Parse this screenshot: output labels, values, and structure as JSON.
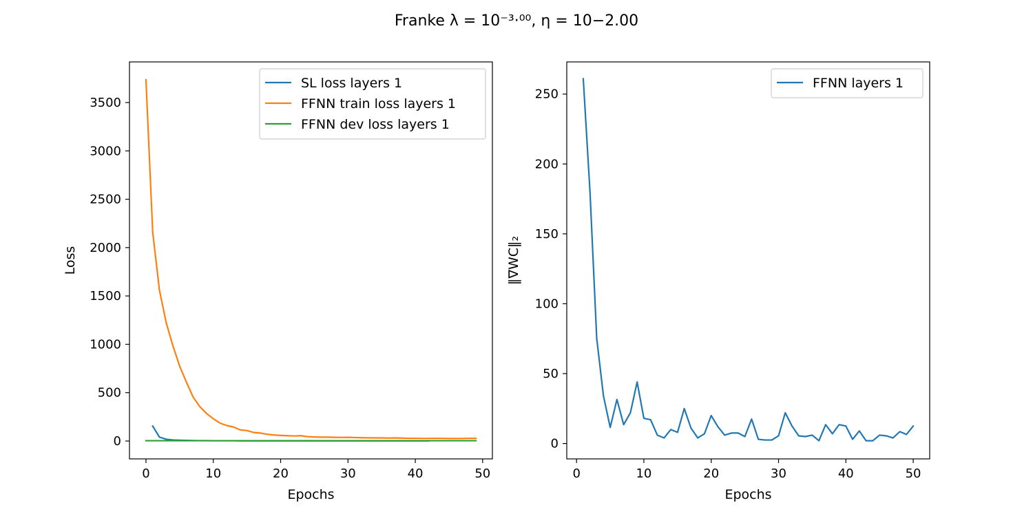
{
  "figure": {
    "title": "Franke λ = 10⁻³·⁰⁰, η = 10−2.00"
  },
  "chart_data": [
    {
      "type": "line",
      "xlabel": "Epochs",
      "ylabel": "Loss",
      "xlim": [
        -2.45,
        51.45
      ],
      "ylim": [
        -185,
        3920
      ],
      "xticks": [
        0,
        10,
        20,
        30,
        40,
        50
      ],
      "yticks": [
        0,
        500,
        1000,
        1500,
        2000,
        2500,
        3000,
        3500
      ],
      "legend": "top-right",
      "series": [
        {
          "name": "SL loss layers 1",
          "color": "#1f77b4",
          "x": [
            1,
            2,
            3,
            4,
            5,
            6,
            7,
            8,
            9,
            10,
            11,
            12,
            13,
            14,
            15,
            16,
            17,
            18,
            19,
            20,
            21,
            22,
            23,
            24,
            25,
            26,
            27,
            28,
            29,
            30,
            31,
            32,
            33,
            34,
            35,
            36,
            37,
            38,
            39,
            40,
            41,
            42
          ],
          "y": [
            155,
            40,
            18,
            11,
            8,
            6,
            5,
            4,
            4,
            3,
            3,
            3,
            3,
            2,
            2,
            2,
            2,
            2,
            2,
            2,
            2,
            2,
            2,
            2,
            2,
            2,
            2,
            2,
            2,
            2,
            2,
            2,
            2,
            2,
            2,
            2,
            2,
            2,
            2,
            2,
            2,
            2
          ]
        },
        {
          "name": "FFNN train loss layers 1",
          "color": "#ff7f0e",
          "x": [
            0,
            1,
            2,
            3,
            4,
            5,
            6,
            7,
            8,
            9,
            10,
            11,
            12,
            13,
            14,
            15,
            16,
            17,
            18,
            19,
            20,
            21,
            22,
            23,
            24,
            25,
            26,
            27,
            28,
            29,
            30,
            31,
            32,
            33,
            34,
            35,
            36,
            37,
            38,
            39,
            40,
            41,
            42,
            43,
            44,
            45,
            46,
            47,
            48,
            49
          ],
          "y": [
            3735,
            2160,
            1560,
            1225,
            985,
            775,
            610,
            455,
            355,
            285,
            230,
            185,
            160,
            145,
            115,
            108,
            88,
            82,
            70,
            62,
            58,
            55,
            52,
            55,
            45,
            42,
            40,
            40,
            38,
            37,
            38,
            36,
            34,
            33,
            32,
            32,
            30,
            32,
            30,
            28,
            28,
            27,
            27,
            28,
            27,
            26,
            26,
            26,
            28,
            27
          ]
        },
        {
          "name": "FFNN dev loss layers 1",
          "color": "#2ca02c",
          "x": [
            0,
            49
          ],
          "y": [
            3,
            3
          ]
        }
      ]
    },
    {
      "type": "line",
      "xlabel": "Epochs",
      "ylabel": "‖∇WC‖₂",
      "xlim": [
        -1.45,
        52.45
      ],
      "ylim": [
        -11,
        273
      ],
      "xticks": [
        0,
        10,
        20,
        30,
        40,
        50
      ],
      "yticks": [
        0,
        50,
        100,
        150,
        200,
        250
      ],
      "legend": "top-right",
      "series": [
        {
          "name": "FFNN layers 1",
          "color": "#1f77b4",
          "x": [
            1,
            2,
            3,
            4,
            5,
            6,
            7,
            8,
            9,
            10,
            11,
            12,
            13,
            14,
            15,
            16,
            17,
            18,
            19,
            20,
            21,
            22,
            23,
            24,
            25,
            26,
            27,
            28,
            29,
            30,
            31,
            32,
            33,
            34,
            35,
            36,
            37,
            38,
            39,
            40,
            41,
            42,
            43,
            44,
            45,
            46,
            47,
            48,
            49,
            50
          ],
          "y": [
            261,
            180,
            75,
            34,
            11.5,
            31.5,
            13.5,
            22,
            44,
            18,
            17,
            6,
            4,
            10,
            8,
            25,
            11,
            4,
            7,
            20,
            12,
            6,
            7.5,
            7.5,
            5,
            17.5,
            3,
            2.5,
            2.5,
            5.5,
            22,
            12.5,
            5.5,
            5,
            6,
            2,
            13.5,
            7,
            13.5,
            12.5,
            3,
            9,
            2,
            2,
            6,
            5.5,
            4,
            8.5,
            6.5,
            12.5
          ]
        }
      ]
    }
  ]
}
